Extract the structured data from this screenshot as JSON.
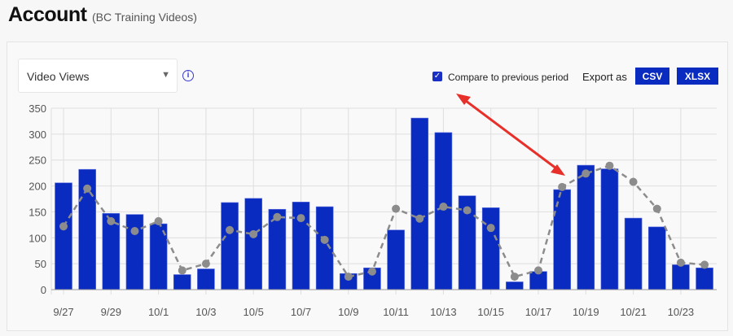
{
  "header": {
    "title": "Account",
    "subtitle": "(BC Training Videos)"
  },
  "controls": {
    "metric_select": "Video Views",
    "info_icon": "info-circle-icon",
    "compare_label": "Compare to previous period",
    "compare_checked": true,
    "export_label": "Export as",
    "csv_label": "CSV",
    "xlsx_label": "XLSX"
  },
  "colors": {
    "bar": "#0a2bbf",
    "previous": "#8c8c8c",
    "arrow": "#e8302a",
    "accent": "#1a2fc4"
  },
  "chart_data": {
    "type": "bar",
    "ylim": [
      0,
      350
    ],
    "yticks": [
      0,
      50,
      100,
      150,
      200,
      250,
      300,
      350
    ],
    "grid": true,
    "categories": [
      "9/27",
      "9/28",
      "9/29",
      "9/30",
      "10/1",
      "10/2",
      "10/3",
      "10/4",
      "10/5",
      "10/6",
      "10/7",
      "10/8",
      "10/9",
      "10/10",
      "10/11",
      "10/12",
      "10/13",
      "10/14",
      "10/15",
      "10/16",
      "10/17",
      "10/18",
      "10/19",
      "10/20",
      "10/21",
      "10/22",
      "10/23",
      "10/24"
    ],
    "xtick_labels": [
      "9/27",
      "9/29",
      "10/1",
      "10/3",
      "10/5",
      "10/7",
      "10/9",
      "10/11",
      "10/13",
      "10/15",
      "10/17",
      "10/19",
      "10/21",
      "10/23"
    ],
    "series": [
      {
        "type": "bar",
        "values": [
          206,
          232,
          147,
          145,
          127,
          29,
          40,
          168,
          176,
          155,
          169,
          160,
          31,
          42,
          115,
          331,
          303,
          181,
          158,
          15,
          35,
          193,
          240,
          233,
          138,
          121,
          48,
          42
        ]
      },
      {
        "type": "line",
        "style": "dashed",
        "values": [
          122,
          195,
          132,
          113,
          132,
          37,
          50,
          115,
          107,
          140,
          138,
          96,
          25,
          35,
          156,
          137,
          160,
          153,
          119,
          25,
          37,
          198,
          224,
          239,
          208,
          156,
          52,
          48
        ]
      }
    ]
  }
}
